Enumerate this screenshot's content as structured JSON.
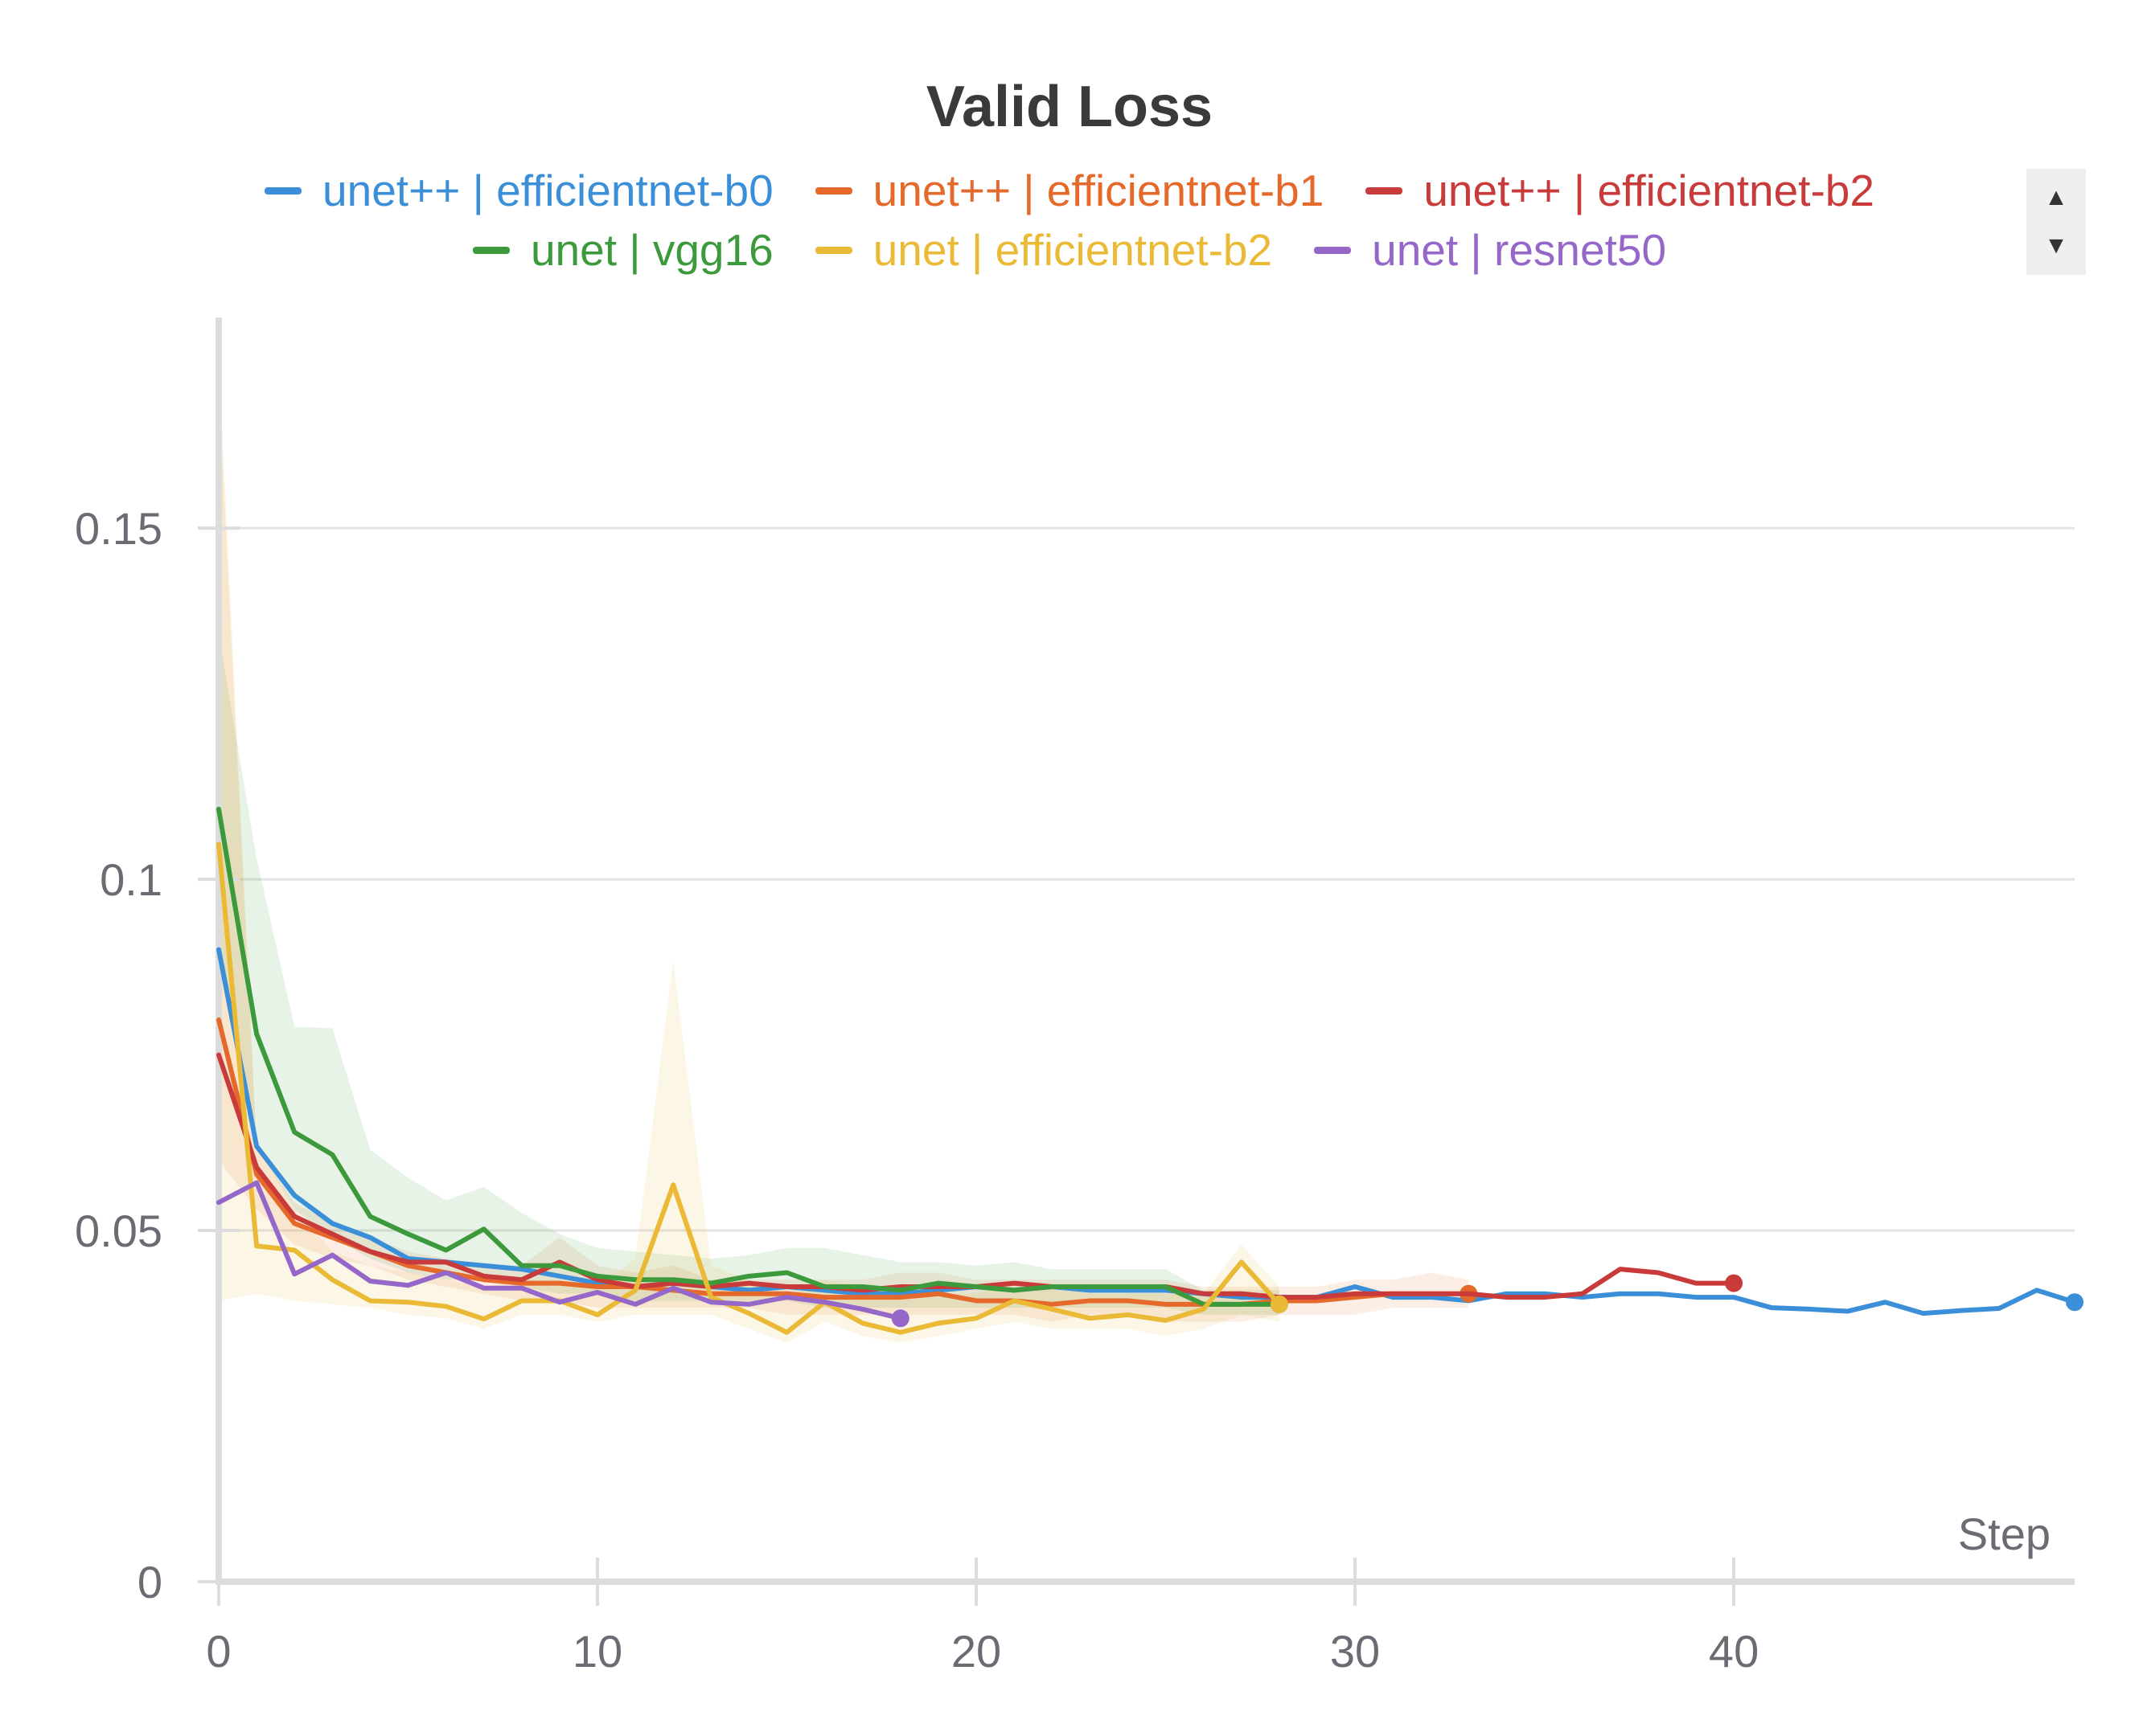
{
  "chart_data": {
    "type": "line",
    "title": "Valid Loss",
    "xlabel": "Step",
    "ylabel": "",
    "xlim": [
      0,
      49
    ],
    "ylim": [
      0,
      0.18
    ],
    "xticks": [
      0,
      10,
      20,
      30,
      40
    ],
    "yticks": [
      0,
      0.05,
      0.1,
      0.15
    ],
    "ytick_labels": [
      "0",
      "0.05",
      "0.1",
      "0.15"
    ],
    "grid": true,
    "legend_position": "top",
    "series": [
      {
        "name": "unet++ | efficientnet-b0",
        "color": "#3a8fd8",
        "x": [
          0,
          1,
          2,
          3,
          4,
          5,
          6,
          7,
          8,
          9,
          10,
          11,
          12,
          13,
          14,
          15,
          16,
          17,
          18,
          19,
          20,
          21,
          22,
          23,
          24,
          25,
          26,
          27,
          28,
          29,
          30,
          31,
          32,
          33,
          34,
          35,
          36,
          37,
          38,
          39,
          40,
          41,
          42,
          43,
          44,
          45,
          46,
          47,
          48,
          49
        ],
        "y": [
          0.09,
          0.062,
          0.055,
          0.051,
          0.049,
          0.046,
          0.0455,
          0.045,
          0.0445,
          0.0435,
          0.0425,
          0.042,
          0.0425,
          0.042,
          0.0415,
          0.042,
          0.0415,
          0.041,
          0.041,
          0.0415,
          0.042,
          0.0415,
          0.042,
          0.0415,
          0.0415,
          0.0415,
          0.041,
          0.0405,
          0.0405,
          0.0405,
          0.042,
          0.0405,
          0.0405,
          0.04,
          0.041,
          0.041,
          0.0405,
          0.041,
          0.041,
          0.0405,
          0.0405,
          0.039,
          0.0388,
          0.0385,
          0.0398,
          0.0382,
          0.0386,
          0.0389,
          0.0415,
          0.0398
        ],
        "band": null
      },
      {
        "name": "unet++ | efficientnet-b1",
        "color": "#e4692a",
        "x": [
          0,
          1,
          2,
          3,
          4,
          5,
          6,
          7,
          8,
          9,
          10,
          11,
          12,
          13,
          14,
          15,
          16,
          17,
          18,
          19,
          20,
          21,
          22,
          23,
          24,
          25,
          26,
          27,
          28,
          29,
          30,
          31,
          32,
          33
        ],
        "y": [
          0.08,
          0.058,
          0.051,
          0.049,
          0.047,
          0.045,
          0.044,
          0.043,
          0.0425,
          0.0425,
          0.042,
          0.042,
          0.0415,
          0.041,
          0.041,
          0.041,
          0.0405,
          0.0405,
          0.0405,
          0.041,
          0.04,
          0.04,
          0.0395,
          0.04,
          0.04,
          0.0395,
          0.0395,
          0.0395,
          0.04,
          0.04,
          0.0405,
          0.041,
          0.041,
          0.041
        ],
        "band": {
          "x": [
            0,
            1,
            2,
            3,
            4,
            5,
            6,
            7,
            8,
            9,
            10,
            11,
            12,
            13,
            14,
            15,
            16,
            17,
            18,
            19,
            20,
            21,
            22,
            23,
            24,
            25,
            26,
            27,
            28,
            29,
            30,
            31,
            32,
            33
          ],
          "upper": [
            0.17,
            0.062,
            0.054,
            0.051,
            0.049,
            0.047,
            0.046,
            0.045,
            0.045,
            0.049,
            0.045,
            0.044,
            0.045,
            0.043,
            0.043,
            0.043,
            0.043,
            0.043,
            0.044,
            0.044,
            0.043,
            0.043,
            0.043,
            0.043,
            0.043,
            0.043,
            0.042,
            0.042,
            0.042,
            0.042,
            0.043,
            0.043,
            0.044,
            0.043
          ],
          "lower": [
            0.06,
            0.053,
            0.048,
            0.046,
            0.045,
            0.043,
            0.042,
            0.041,
            0.04,
            0.04,
            0.039,
            0.039,
            0.039,
            0.039,
            0.039,
            0.038,
            0.038,
            0.038,
            0.038,
            0.038,
            0.038,
            0.038,
            0.037,
            0.038,
            0.038,
            0.037,
            0.037,
            0.037,
            0.038,
            0.038,
            0.038,
            0.039,
            0.039,
            0.039
          ]
        }
      },
      {
        "name": "unet++ | efficientnet-b2",
        "color": "#c93a3a",
        "x": [
          0,
          1,
          2,
          3,
          4,
          5,
          6,
          7,
          8,
          9,
          10,
          11,
          12,
          13,
          14,
          15,
          16,
          17,
          18,
          19,
          20,
          21,
          22,
          23,
          24,
          25,
          26,
          27,
          28,
          29,
          30,
          31,
          32,
          33,
          34,
          35,
          36,
          37,
          38,
          39,
          40
        ],
        "y": [
          0.075,
          0.059,
          0.052,
          0.0495,
          0.047,
          0.0455,
          0.0455,
          0.0435,
          0.043,
          0.0455,
          0.043,
          0.042,
          0.0425,
          0.042,
          0.0425,
          0.042,
          0.042,
          0.0415,
          0.042,
          0.042,
          0.042,
          0.0425,
          0.042,
          0.042,
          0.042,
          0.042,
          0.041,
          0.041,
          0.0405,
          0.0405,
          0.041,
          0.041,
          0.041,
          0.041,
          0.0405,
          0.0405,
          0.041,
          0.0445,
          0.044,
          0.0425,
          0.0425
        ],
        "band": null
      },
      {
        "name": "unet | vgg16",
        "color": "#3c9a3c",
        "x": [
          0,
          1,
          2,
          3,
          4,
          5,
          6,
          7,
          8,
          9,
          10,
          11,
          12,
          13,
          14,
          15,
          16,
          17,
          18,
          19,
          20,
          21,
          22,
          23,
          24,
          25,
          26,
          27,
          28
        ],
        "y": [
          0.11,
          0.078,
          0.064,
          0.0608,
          0.052,
          0.0495,
          0.0472,
          0.0502,
          0.045,
          0.045,
          0.0435,
          0.043,
          0.043,
          0.0425,
          0.0435,
          0.044,
          0.042,
          0.042,
          0.0415,
          0.0425,
          0.042,
          0.0415,
          0.042,
          0.042,
          0.042,
          0.042,
          0.0395,
          0.0395,
          0.0395
        ],
        "band": {
          "x": [
            0,
            1,
            2,
            3,
            4,
            5,
            6,
            7,
            8,
            9,
            10,
            11,
            12,
            13,
            14,
            15,
            16,
            17,
            18,
            19,
            20,
            21,
            22,
            23,
            24,
            25,
            26,
            27,
            28
          ],
          "upper": [
            0.135,
            0.103,
            0.079,
            0.0788,
            0.0615,
            0.0575,
            0.0543,
            0.0562,
            0.0525,
            0.0495,
            0.0475,
            0.047,
            0.0465,
            0.046,
            0.0465,
            0.0475,
            0.0475,
            0.0465,
            0.0455,
            0.0455,
            0.045,
            0.0455,
            0.0445,
            0.0445,
            0.0445,
            0.0445,
            0.0415,
            0.0415,
            0.0415
          ],
          "lower": [
            0.09,
            0.062,
            0.053,
            0.049,
            0.046,
            0.044,
            0.043,
            0.043,
            0.042,
            0.041,
            0.041,
            0.04,
            0.04,
            0.04,
            0.04,
            0.04,
            0.039,
            0.039,
            0.039,
            0.039,
            0.039,
            0.039,
            0.039,
            0.039,
            0.039,
            0.039,
            0.038,
            0.038,
            0.038
          ]
        }
      },
      {
        "name": "unet | efficientnet-b2",
        "color": "#eab935",
        "x": [
          0,
          1,
          2,
          3,
          4,
          5,
          6,
          7,
          8,
          9,
          10,
          11,
          12,
          13,
          14,
          15,
          16,
          17,
          18,
          19,
          20,
          21,
          22,
          23,
          24,
          25,
          26,
          27,
          28
        ],
        "y": [
          0.105,
          0.0478,
          0.0472,
          0.043,
          0.04,
          0.0398,
          0.0392,
          0.0374,
          0.04,
          0.04,
          0.038,
          0.0415,
          0.0565,
          0.0405,
          0.0382,
          0.0355,
          0.0398,
          0.0368,
          0.0355,
          0.0368,
          0.0375,
          0.04,
          0.0388,
          0.0375,
          0.038,
          0.0372,
          0.0388,
          0.0455,
          0.0395
        ],
        "band": {
          "x": [
            0,
            1,
            2,
            3,
            4,
            5,
            6,
            7,
            8,
            9,
            10,
            11,
            12,
            13,
            14,
            15,
            16,
            17,
            18,
            19,
            20,
            21,
            22,
            23,
            24,
            25,
            26,
            27,
            28
          ],
          "upper": [
            0.175,
            0.062,
            0.053,
            0.047,
            0.045,
            0.044,
            0.043,
            0.042,
            0.043,
            0.043,
            0.042,
            0.046,
            0.0885,
            0.045,
            0.043,
            0.041,
            0.043,
            0.042,
            0.041,
            0.041,
            0.041,
            0.043,
            0.042,
            0.041,
            0.041,
            0.041,
            0.041,
            0.048,
            0.042
          ],
          "lower": [
            0.04,
            0.041,
            0.04,
            0.0395,
            0.039,
            0.038,
            0.0375,
            0.036,
            0.038,
            0.038,
            0.037,
            0.038,
            0.038,
            0.038,
            0.036,
            0.034,
            0.037,
            0.035,
            0.034,
            0.035,
            0.036,
            0.037,
            0.036,
            0.036,
            0.036,
            0.035,
            0.036,
            0.038,
            0.037
          ]
        }
      },
      {
        "name": "unet | resnet50",
        "color": "#9467c9",
        "x": [
          0,
          1,
          2,
          3,
          4,
          5,
          6,
          7,
          8,
          9,
          10,
          11,
          12,
          13,
          14,
          15,
          16,
          17,
          18
        ],
        "y": [
          0.054,
          0.0568,
          0.0438,
          0.0465,
          0.0428,
          0.0422,
          0.044,
          0.0418,
          0.0418,
          0.0398,
          0.0412,
          0.0395,
          0.0418,
          0.0398,
          0.0395,
          0.0405,
          0.0398,
          0.0388,
          0.0375
        ],
        "band": null
      }
    ]
  },
  "legend_nav": {
    "up_icon": "triangle-up-icon",
    "down_icon": "triangle-down-icon"
  }
}
